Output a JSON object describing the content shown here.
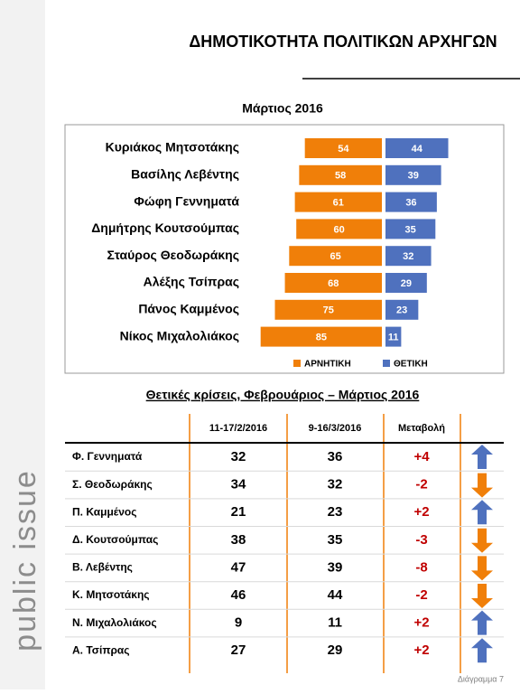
{
  "header": {
    "title": "ΔΗΜΟΤΙΚΟΤΗΤΑ ΠΟΛΙΤΙΚΩΝ ΑΡΧΗΓΩΝ"
  },
  "sidebar": {
    "brand": "public issue"
  },
  "chart_data": {
    "type": "diverging-bar",
    "title": "Μάρτιος 2016",
    "categories": [
      "Κυριάκος Μητσοτάκης",
      "Βασίλης Λεβέντης",
      "Φώφη Γεννηματά",
      "Δημήτρης Κουτσούμπας",
      "Σταύρος Θεοδωράκης",
      "Αλέξης Τσίπρας",
      "Πάνος Καμμένος",
      "Νίκος Μιχαλολιάκος"
    ],
    "series": [
      {
        "name": "ΑΡΝΗΤΙΚΗ",
        "color": "#f07f09",
        "side": "left",
        "values": [
          54,
          58,
          61,
          60,
          65,
          68,
          75,
          85
        ]
      },
      {
        "name": "ΘΕΤΙΚΗ",
        "color": "#4f71be",
        "side": "right",
        "values": [
          44,
          39,
          36,
          35,
          32,
          29,
          23,
          11
        ]
      }
    ]
  },
  "table": {
    "title": "Θετικές κρίσεις, Φεβρουάριος – Μάρτιος 2016",
    "columns": [
      "11-17/2/2016",
      "9-16/3/2016",
      "Μεταβολή"
    ],
    "rows": [
      [
        "Φ. Γεννηματά",
        32,
        36,
        "+4"
      ],
      [
        "Σ. Θεοδωράκης",
        34,
        32,
        "-2"
      ],
      [
        "Π. Καμμένος",
        21,
        23,
        "+2"
      ],
      [
        "Δ. Κουτσούμπας",
        38,
        35,
        "-3"
      ],
      [
        "Β. Λεβέντης",
        47,
        39,
        "-8"
      ],
      [
        "Κ. Μητσοτάκης",
        46,
        44,
        "-2"
      ],
      [
        "Ν. Μιχαλολιάκος",
        9,
        11,
        "+2"
      ],
      [
        "Α. Τσίπρας",
        27,
        29,
        "+2"
      ]
    ]
  },
  "footer": {
    "caption": "Διάγραμμα 7"
  }
}
